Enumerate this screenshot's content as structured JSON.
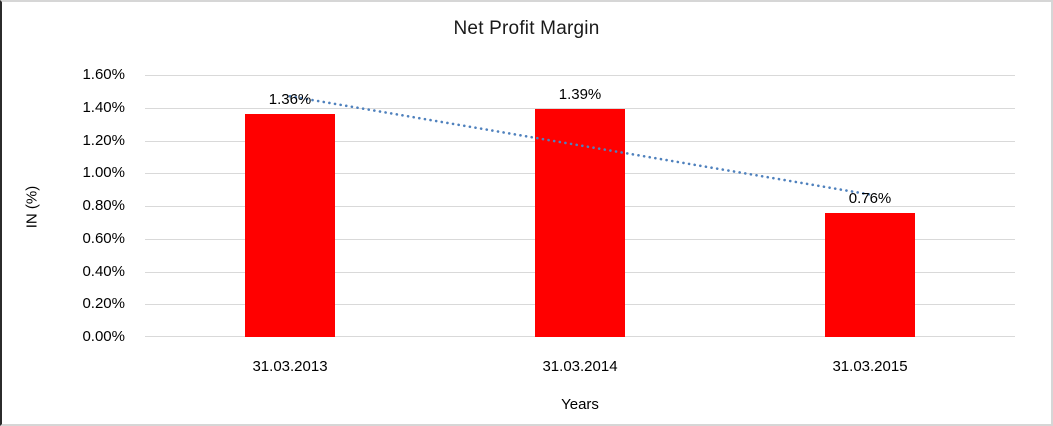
{
  "chart_data": {
    "type": "bar",
    "title": "Net Profit Margin",
    "xlabel": "Years",
    "ylabel": "IN (%)",
    "categories": [
      "31.03.2013",
      "31.03.2014",
      "31.03.2015"
    ],
    "values": [
      1.36,
      1.39,
      0.76
    ],
    "data_labels": [
      "1.36%",
      "1.39%",
      "0.76%"
    ],
    "ylim": [
      0,
      1.6
    ],
    "ytick_step": 0.2,
    "ytick_labels": [
      "1.60%",
      "1.40%",
      "1.20%",
      "1.00%",
      "0.80%",
      "0.60%",
      "0.40%",
      "0.20%",
      "0.00%"
    ],
    "grid": true,
    "legend": "none",
    "bar_color": "#FF0000",
    "gridline_color": "#D9D9D9",
    "text_color": "#000000",
    "trendline": {
      "type": "linear",
      "style": "dotted",
      "color": "#4F81BD",
      "start_value_pct": 1.47,
      "end_value_pct": 0.87
    }
  }
}
